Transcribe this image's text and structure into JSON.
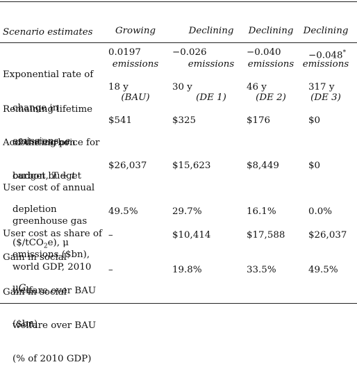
{
  "table": {
    "stub_header": "Scenario estimates",
    "columns": [
      {
        "line1": "Growing",
        "line2": "emissions",
        "line3": "(BAU)"
      },
      {
        "line1": "Declining",
        "line2": "emissions",
        "line3": "(DE 1)"
      },
      {
        "line1": "Declining",
        "line2": "emissions",
        "line3": "(DE 2)"
      },
      {
        "line1": "Declining",
        "line2": "emissions",
        "line3": "(DE 3)"
      }
    ],
    "rows": [
      {
        "label_lines": [
          "Exponential rate of",
          "change in",
          "emissions, a"
        ],
        "values": [
          "0.0197",
          "−0.026",
          "−0.040",
          "−0.048*"
        ]
      },
      {
        "label_lines": [
          "Remaining lifetime",
          "of the carbon",
          "budget, T − t"
        ],
        "values": [
          "18 y",
          "30 y",
          "46 y",
          "317 y"
        ]
      },
      {
        "label_lines": [
          "Accounting price for",
          "carbon budget",
          "depletion",
          "($/tCO2e), μ"
        ],
        "values": [
          "$541",
          "$325",
          "$176",
          "$0"
        ]
      },
      {
        "label_lines": [
          "User cost of annual",
          "greenhouse gas",
          "emissions ($bn),",
          "μG0"
        ],
        "values": [
          "$26,037",
          "$15,623",
          "$8,449",
          "$0"
        ]
      },
      {
        "label_lines": [
          "User cost as share of",
          "world GDP, 2010"
        ],
        "values": [
          "49.5%",
          "29.7%",
          "16.1%",
          "0.0%"
        ]
      },
      {
        "label_lines": [
          "Gain in social",
          "welfare over BAU",
          "($bn)"
        ],
        "values": [
          "–",
          "$10,414",
          "$17,588",
          "$26,037"
        ]
      },
      {
        "label_lines": [
          "Gain in social",
          "welfare over BAU",
          "(% of 2010 GDP)"
        ],
        "values": [
          "–",
          "19.8%",
          "33.5%",
          "49.5%"
        ]
      }
    ]
  }
}
